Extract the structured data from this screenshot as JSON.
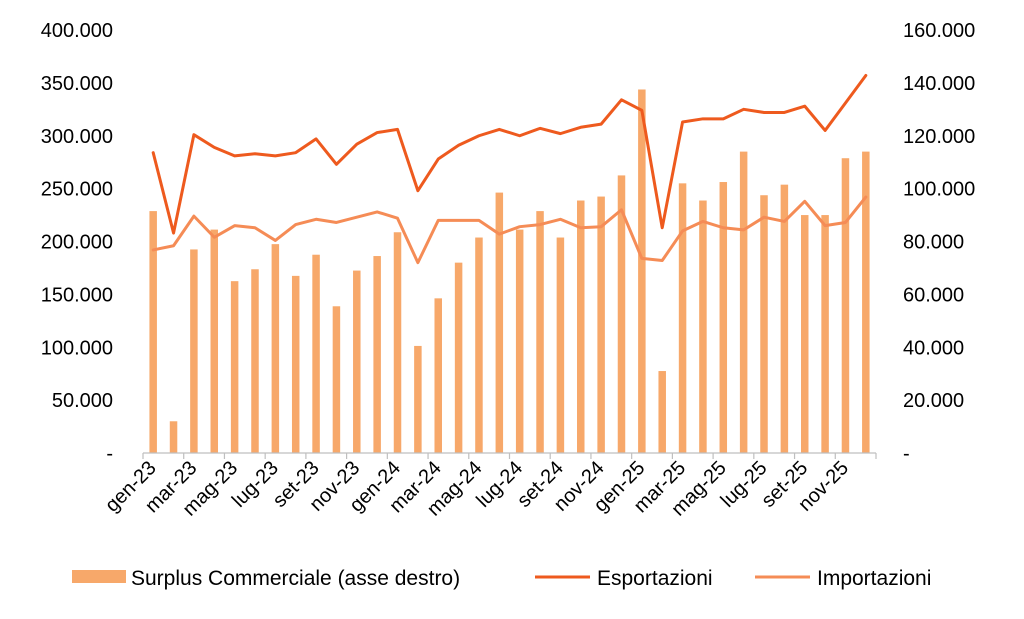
{
  "chart_data": {
    "type": "bar",
    "title": "",
    "categories": [
      "gen-23",
      "feb-23",
      "mar-23",
      "apr-23",
      "mag-23",
      "giu-23",
      "lug-23",
      "ago-23",
      "set-23",
      "ott-23",
      "nov-23",
      "dic-23",
      "gen-24",
      "feb-24",
      "mar-24",
      "apr-24",
      "mag-24",
      "giu-24",
      "lug-24",
      "ago-24",
      "set-24",
      "ott-24",
      "nov-24",
      "dic-24",
      "gen-25",
      "feb-25",
      "mar-25",
      "apr-25",
      "mag-25",
      "giu-25",
      "lug-25",
      "ago-25",
      "set-25",
      "ott-25",
      "nov-25",
      "dic-25"
    ],
    "x_tick_labels": [
      "gen-23",
      "mar-23",
      "mag-23",
      "lug-23",
      "set-23",
      "nov-23",
      "gen-24",
      "mar-24",
      "mag-24",
      "lug-24",
      "set-24",
      "nov-24",
      "gen-25",
      "mar-25",
      "mag-25",
      "lug-25",
      "set-25",
      "nov-25"
    ],
    "y_left": {
      "ylim": [
        0,
        400000
      ],
      "ticks": [
        "-",
        "50.000",
        "100.000",
        "150.000",
        "200.000",
        "250.000",
        "300.000",
        "350.000",
        "400.000"
      ]
    },
    "y_right": {
      "ylim": [
        0,
        160000
      ],
      "ticks": [
        "-",
        "20.000",
        "40.000",
        "60.000",
        "80.000",
        "100.000",
        "120.000",
        "140.000",
        "160.000"
      ]
    },
    "series": [
      {
        "name": "Surplus Commerciale (asse destro)",
        "type": "bar",
        "axis": "right",
        "color": "#F7A86A",
        "values": [
          91500,
          12000,
          77000,
          84500,
          65000,
          69500,
          79000,
          67000,
          75000,
          55500,
          69000,
          74500,
          83500,
          40500,
          58500,
          72000,
          81500,
          98500,
          84500,
          91500,
          81500,
          95500,
          97000,
          105000,
          137500,
          31000,
          102000,
          95500,
          102500,
          114000,
          97500,
          101500,
          90000,
          90000,
          111500,
          114000
        ]
      },
      {
        "name": "Esportazioni",
        "type": "line",
        "axis": "left",
        "color": "#EE5A1E",
        "values": [
          284000,
          208000,
          301000,
          289000,
          281000,
          283000,
          281000,
          284000,
          297000,
          273000,
          292000,
          303000,
          306000,
          248000,
          278000,
          291000,
          300000,
          306000,
          300000,
          307000,
          302000,
          308000,
          311000,
          334000,
          324000,
          213000,
          313000,
          316000,
          316000,
          325000,
          322000,
          322000,
          328000,
          305000,
          331000,
          357000
        ]
      },
      {
        "name": "Importazioni",
        "type": "line",
        "axis": "left",
        "color": "#F58C56",
        "values": [
          192000,
          196000,
          224000,
          204000,
          215000,
          213000,
          201000,
          216000,
          221000,
          218000,
          223000,
          228000,
          222000,
          180000,
          220000,
          220000,
          220000,
          207000,
          214000,
          216000,
          221000,
          213000,
          214000,
          230000,
          184000,
          182000,
          210000,
          219000,
          213000,
          211000,
          223000,
          219000,
          238000,
          215000,
          218000,
          242000
        ]
      }
    ],
    "legend": {
      "placement": "bottom",
      "items": [
        "Surplus Commerciale (asse destro)",
        "Esportazioni",
        "Importazioni"
      ]
    },
    "grid": false
  }
}
